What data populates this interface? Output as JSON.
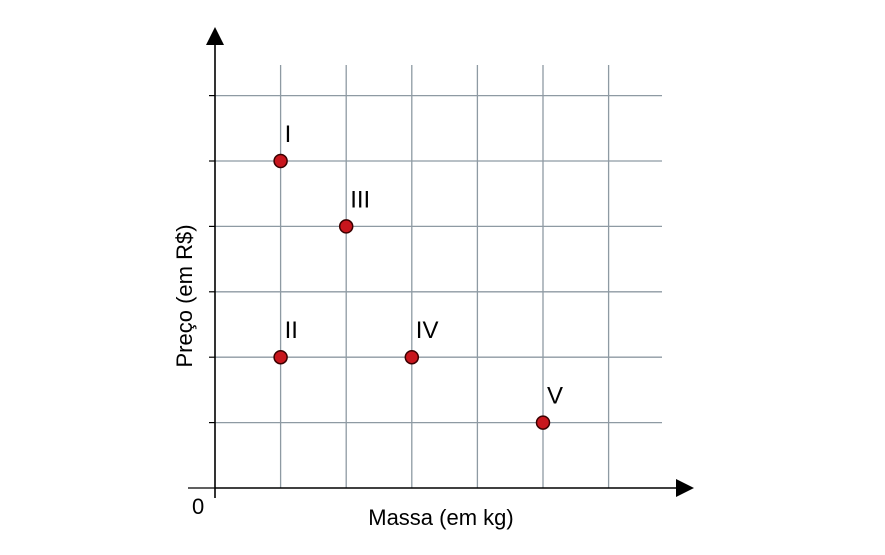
{
  "chart_data": {
    "type": "scatter",
    "xlabel": "Massa (em kg)",
    "ylabel": "Preço (em R$)",
    "origin_label": "0",
    "xlim": [
      0,
      7.5
    ],
    "ylim": [
      0,
      6.5
    ],
    "grid": true,
    "point_color": "#c8161d",
    "points": [
      {
        "label": "I",
        "x": 1,
        "y": 5
      },
      {
        "label": "II",
        "x": 1,
        "y": 2
      },
      {
        "label": "III",
        "x": 2,
        "y": 4
      },
      {
        "label": "IV",
        "x": 3,
        "y": 2
      },
      {
        "label": "V",
        "x": 5,
        "y": 1
      }
    ]
  }
}
